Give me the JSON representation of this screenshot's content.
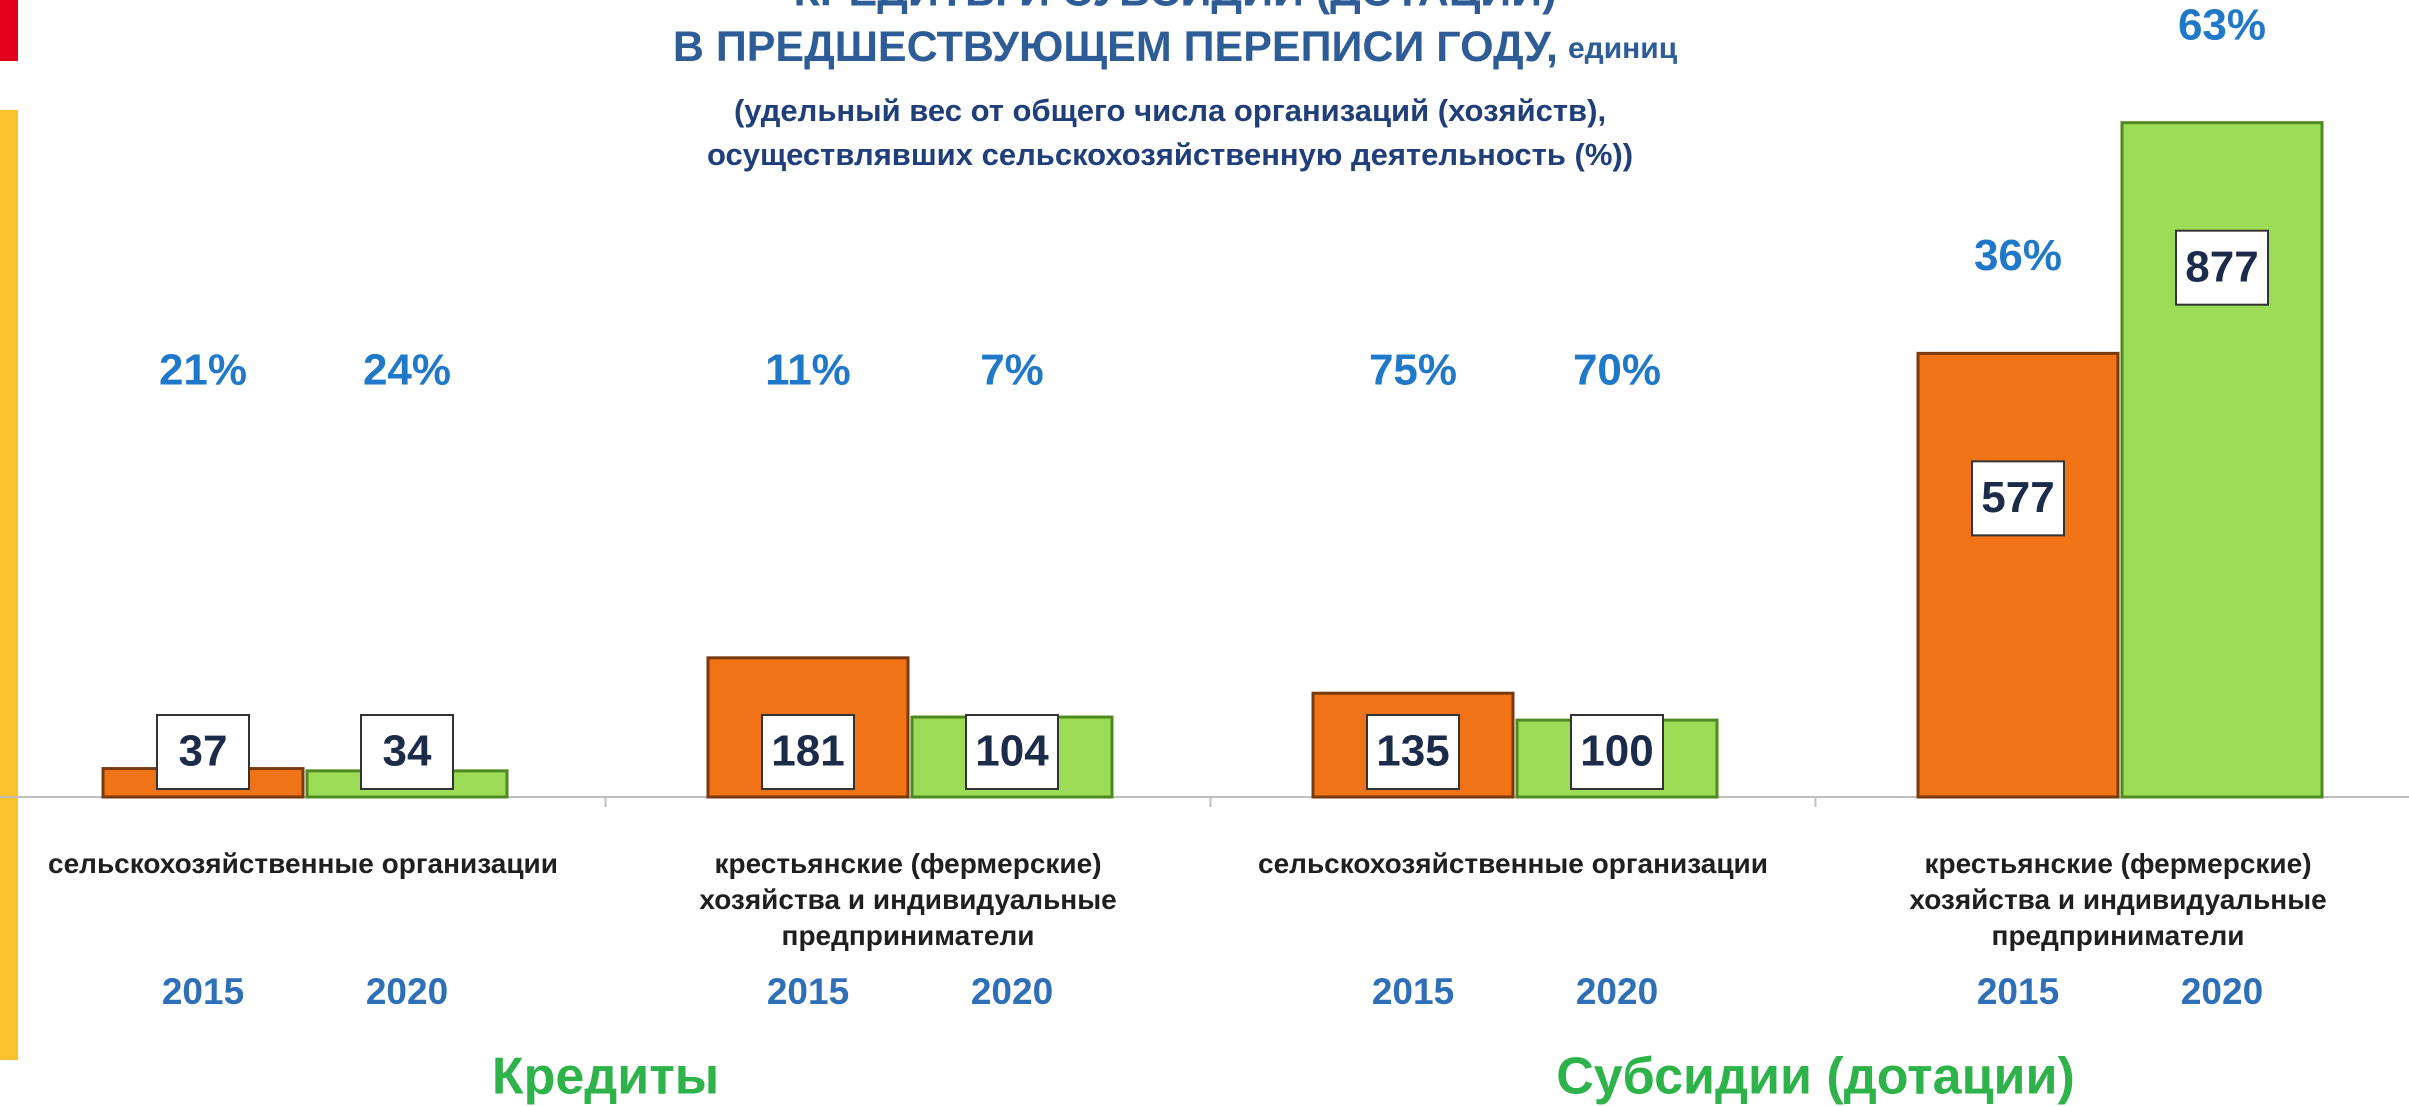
{
  "chart_data": {
    "type": "bar",
    "title_line1": "КРЕДИТЫ И СУБСИДИИ (ДОТАЦИИ)",
    "title": "В ПРЕДШЕСТВУЮЩЕМ ПЕРЕПИСИ ГОДУ,",
    "unit": "единиц",
    "subtitle": [
      "(удельный вес от общего числа организаций (хозяйств),",
      "осуществлявших сельскохозяйственную  деятельность (%))"
    ],
    "categories": [
      "сельскохозяйственные организации",
      "крестьянские (фермерские) хозяйства и индивидуальные предприниматели",
      "сельскохозяйственные организации",
      "крестьянские (фермерские) хозяйства и индивидуальные предприниматели"
    ],
    "groups": [
      "Кредиты",
      "Субсидии (дотации)"
    ],
    "series": [
      {
        "name": "2015",
        "color": "#f07416",
        "values": [
          37,
          181,
          135,
          577
        ],
        "share_labels": [
          "21%",
          "11%",
          "75%",
          "36%"
        ]
      },
      {
        "name": "2020",
        "color": "#9ddc56",
        "values": [
          34,
          104,
          100,
          877
        ],
        "share_labels": [
          "24%",
          "7%",
          "70%",
          "63%"
        ]
      }
    ],
    "ylim": [
      0,
      900
    ]
  }
}
